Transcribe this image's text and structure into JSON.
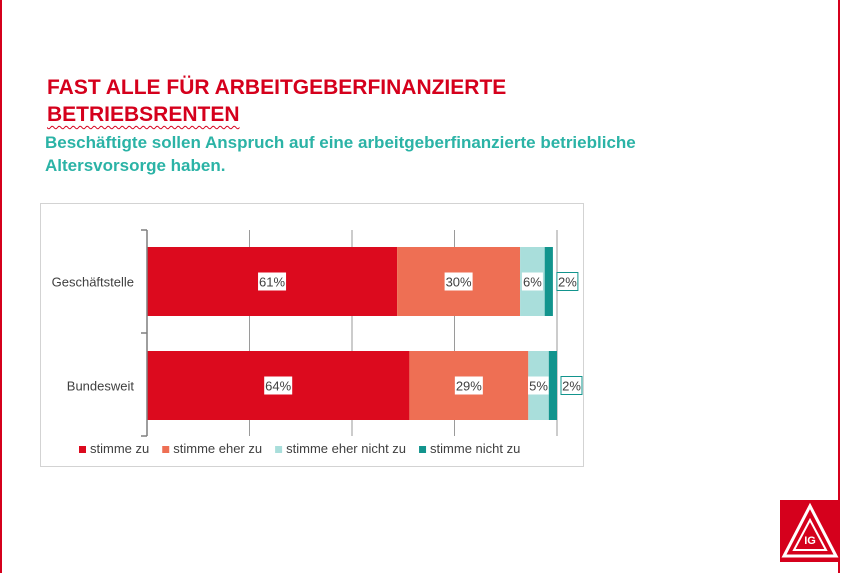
{
  "slide": {
    "title_line1": "FAST ALLE FÜR ARBEITGEBERFINANZIERTE",
    "title_line2": "BETRIEBSRENTEN",
    "subtitle_line1": "Beschäftigte sollen Anspruch auf eine arbeitgeberfinanzierte betriebliche",
    "subtitle_line2": "Altersvorsorge haben.",
    "accent_color": "#d5001c",
    "subtitle_color": "#2bb3a6",
    "logo_icon": "ig-metall-logo",
    "logo_text": "IG"
  },
  "chart_data": {
    "type": "bar",
    "orientation": "horizontal",
    "stacked": true,
    "categories": [
      "Geschäftstelle",
      "Bundesweit"
    ],
    "series": [
      {
        "name": "stimme zu",
        "values": [
          61,
          64
        ],
        "labels": [
          "61%",
          "64%"
        ],
        "color": "#dc0a1e"
      },
      {
        "name": "stimme eher zu",
        "values": [
          30,
          29
        ],
        "labels": [
          "30%",
          "29%"
        ],
        "color": "#ee6f54"
      },
      {
        "name": "stimme eher nicht zu",
        "values": [
          6,
          5
        ],
        "labels": [
          "6%",
          "5%"
        ],
        "color": "#a9dedb"
      },
      {
        "name": "stimme nicht zu",
        "values": [
          2,
          2
        ],
        "labels": [
          "2%",
          "2%"
        ],
        "color": "#12948d"
      }
    ],
    "xlim": [
      0,
      100
    ],
    "grid": true,
    "legend": "bottom"
  }
}
